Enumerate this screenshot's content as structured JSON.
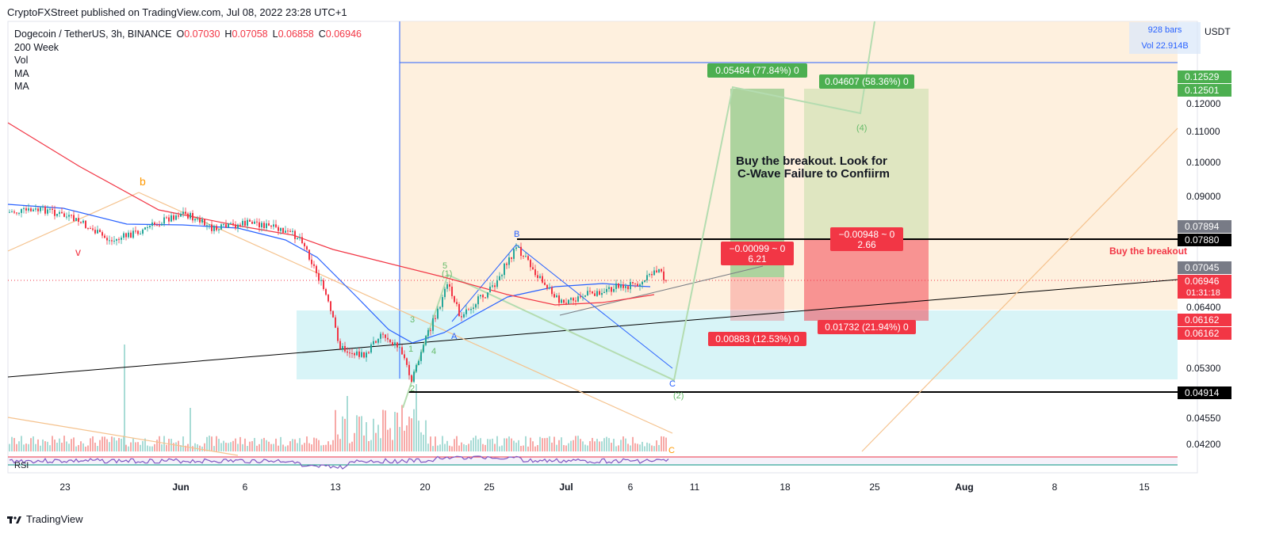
{
  "header": {
    "credit": "CryptoFXStreet published on TradingView.com, Jul 08, 2022 23:28 UTC+1"
  },
  "legend": {
    "symbol": "Dogecoin / TetherUS, 3h, BINANCE",
    "open_label": "O",
    "open": "0.07030",
    "high_label": "H",
    "high": "0.07058",
    "low_label": "L",
    "low": "0.06858",
    "close_label": "C",
    "close": "0.06946",
    "indicators": [
      "200 Week",
      "Vol",
      "MA",
      "MA"
    ]
  },
  "bars_info": {
    "bars": "928 bars",
    "vol": "Vol 22.914B"
  },
  "currency": "USDT",
  "annotation": {
    "line1": "Buy the breakout. Look for",
    "line2": "C-Wave Failure to Confiirm"
  },
  "buy_label": "Buy the breakout",
  "footer": {
    "brand": "TradingView"
  },
  "colors": {
    "up": "#26a69a",
    "down": "#f23645",
    "ma_blue": "#2962ff",
    "ma_red": "#f23645",
    "profit_zone": "#4caf50",
    "loss_zone": "#f23645",
    "rsi": "#7e57c2",
    "wave_green": "#66bb6a",
    "wave_orange": "#ff9800"
  },
  "chart_data": {
    "type": "candlestick",
    "price_scale": {
      "min": 0.038,
      "max": 0.16,
      "tick_labels": [
        "0.12000",
        "0.11000",
        "0.10000",
        "0.09000",
        "0.06400",
        "0.05300",
        "0.04550",
        "0.04200"
      ],
      "badges": [
        {
          "text": "0.12529",
          "bg": "#4caf50"
        },
        {
          "text": "0.12501",
          "bg": "#4caf50"
        },
        {
          "text": "0.07894",
          "bg": "#787b86"
        },
        {
          "text": "0.07880",
          "bg": "#000000"
        },
        {
          "text": "0.07045",
          "bg": "#787b86"
        },
        {
          "text": "0.06946",
          "sub": "01:31:18",
          "bg": "#f23645"
        },
        {
          "text": "0.06162",
          "bg": "#f23645"
        },
        {
          "text": "0.06162",
          "bg": "#f23645"
        },
        {
          "text": "0.04914",
          "bg": "#000000"
        }
      ]
    },
    "time_labels": [
      "23",
      "Jun",
      "6",
      "13",
      "20",
      "25",
      "Jul",
      "6",
      "11",
      "18",
      "25",
      "Aug",
      "8",
      "15"
    ],
    "position_labels": {
      "long1_target": "0.05484 (77.84%) 0",
      "long2_target": "0.04607 (58.36%) 0",
      "long1_stop": "0.00883 (12.53%) 0",
      "long2_stop": "0.01732 (21.94%) 0",
      "long1_ratio_a": "−0.00099 ~ 0",
      "long1_ratio_b": "6.21",
      "long2_ratio_a": "−0.00948 ~ 0",
      "long2_ratio_b": "2.66"
    },
    "wave_labels": {
      "abc_orange": [
        "b"
      ],
      "red": [
        "v"
      ],
      "green_impulse": [
        "1",
        "2",
        "3",
        "4",
        "5"
      ],
      "green_degree": [
        "(1)",
        "(2)",
        "(4)"
      ],
      "abc_blue": [
        "A",
        "B",
        "C"
      ],
      "c_orange": [
        "C"
      ]
    },
    "rsi_label": "RSI"
  }
}
